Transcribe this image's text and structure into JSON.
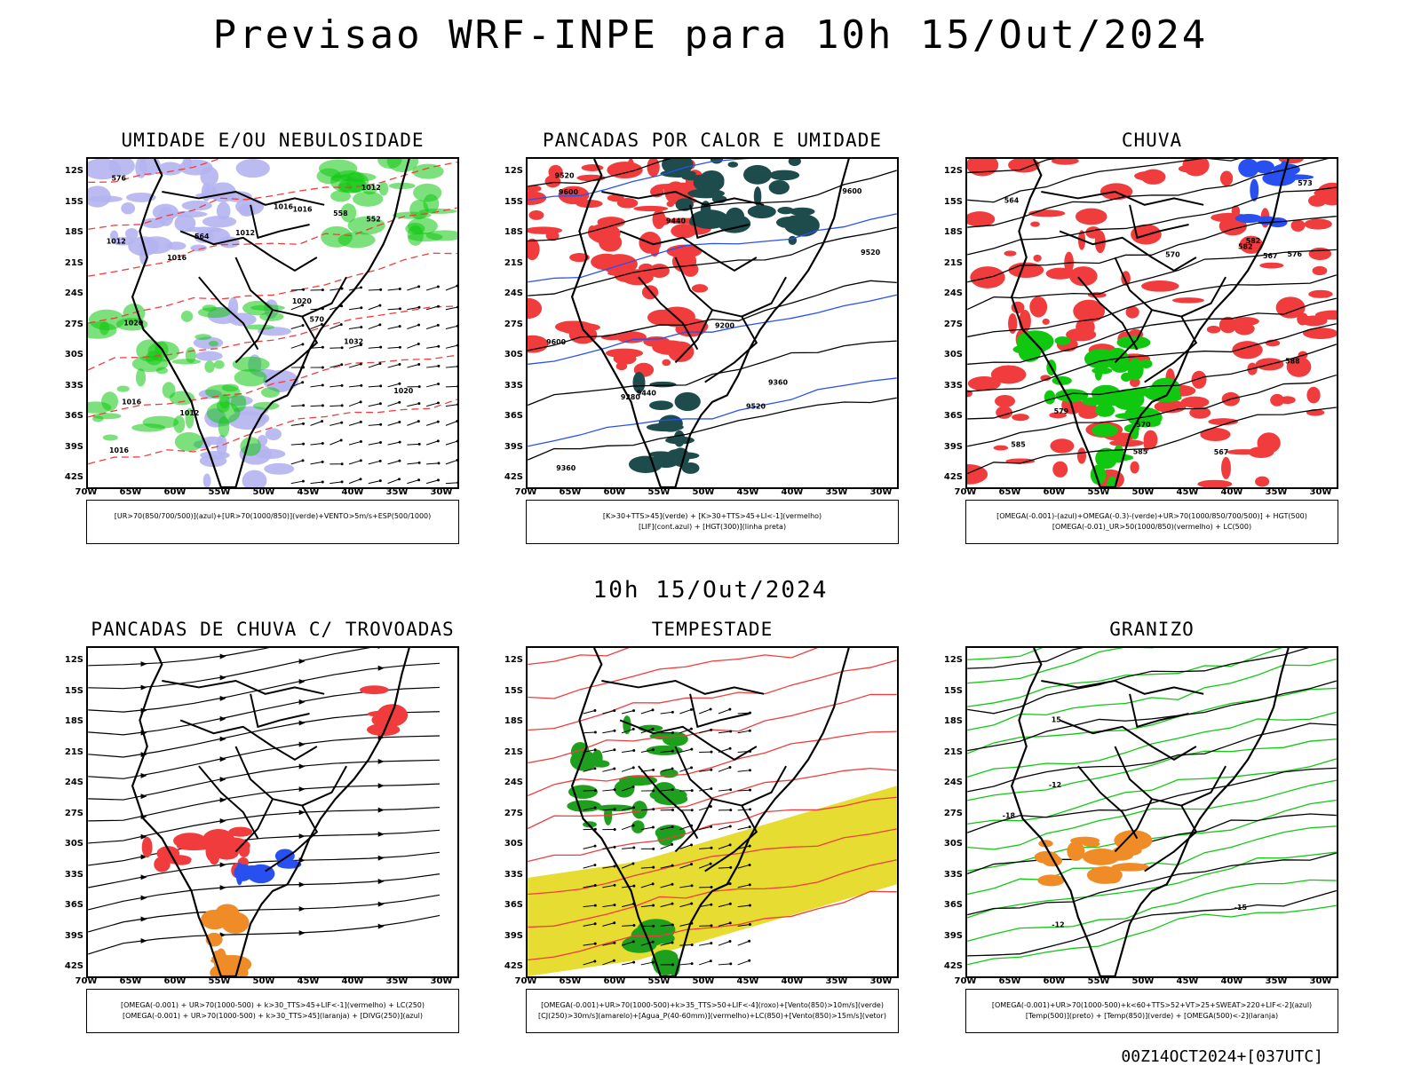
{
  "header": {
    "title": "Previsao WRF-INPE  para 10h 15/Out/2024"
  },
  "middle": {
    "title": "10h 15/Out/2024"
  },
  "footer": {
    "run": "00Z14OCT2024+[037UTC]"
  },
  "axes": {
    "lat_labels": [
      "12S",
      "15S",
      "18S",
      "21S",
      "24S",
      "27S",
      "30S",
      "33S",
      "36S",
      "39S",
      "42S"
    ],
    "lon_labels": [
      "70W",
      "65W",
      "60W",
      "55W",
      "50W",
      "45W",
      "40W",
      "35W",
      "30W"
    ]
  },
  "panels": [
    {
      "title": "UMIDADE E/OU NEBULOSIDADE",
      "legend": [
        "[UR>70(850/700/500)](azul)+[UR>70(1000/850)](verde)+VENTO>5m/s+ESP(500/1000)"
      ],
      "contour_labels": [
        "1012",
        "1012",
        "1020",
        "1012",
        "1016",
        "1016",
        "1012",
        "1020",
        "1016",
        "1016",
        "1032",
        "1016",
        "1020",
        "576",
        "570",
        "564",
        "558",
        "552"
      ]
    },
    {
      "title": "PANCADAS POR CALOR E UMIDADE",
      "legend": [
        "[K>30+TTS>45](verde) + [K>30+TTS>45+LI<-1](vermelho)",
        "[LIF](cont.azul) + [HGT(300)](linha preta)"
      ],
      "contour_labels": [
        "9600",
        "9520",
        "9600",
        "9600",
        "9520",
        "9520",
        "9440",
        "9440",
        "9360",
        "9360",
        "9280",
        "9200"
      ]
    },
    {
      "title": "CHUVA",
      "legend": [
        "[OMEGA(-0.001)-(azul)+OMEGA(-0.3)-(verde)+UR>70(1000/850/700/500)] + HGT(500)",
        "[OMEGA(-0.01)_UR>50(1000/850)(vermelho) + LC(500)"
      ],
      "contour_labels": [
        "585",
        "582",
        "588",
        "585",
        "582",
        "579",
        "576",
        "573",
        "570",
        "567",
        "567",
        "564",
        "570"
      ]
    },
    {
      "title": "PANCADAS DE CHUVA C/ TROVOADAS",
      "legend": [
        "[OMEGA(-0.001) + UR>70(1000-500) + k>30_TTS>45+LIF<-1](vermelho) + LC(250)",
        "[OMEGA(-0.001) + UR>70(1000-500) + k>30_TTS>45](laranja) + [DIVG(250)](azul)"
      ],
      "contour_labels": []
    },
    {
      "title": "TEMPESTADE",
      "legend": [
        "[OMEGA(-0.001)+UR>70(1000-500)+k>35_TTS>50+LIF<-4](roxo)+[Vento(850)>10m/s](verde)",
        "[CJ(250)>30m/s](amarelo)+[Agua_P(40-60mm)](vermelho)+LC(850)+[Vento(850)>15m/s](vetor)"
      ],
      "contour_labels": []
    },
    {
      "title": "GRANIZO",
      "legend": [
        "[OMEGA(-0.001)+UR>70(1000-500)+k<60+TTS>52+VT>25+SWEAT>220+LIF<-2](azul)",
        "[Temp(500)](preto) + [Temp(850)](verde) + [OMEGA(500)<-2](laranja)"
      ],
      "contour_labels": [
        "-12",
        "-12",
        "-15",
        "-18",
        "15"
      ]
    }
  ],
  "colors": {
    "red": "#f03c3c",
    "green": "#10c810",
    "blue": "#2850f0",
    "lavender": "#b4b4f0",
    "darkteal": "#1e4b4b",
    "yellow": "#e6dc32",
    "orange": "#f08c28"
  }
}
